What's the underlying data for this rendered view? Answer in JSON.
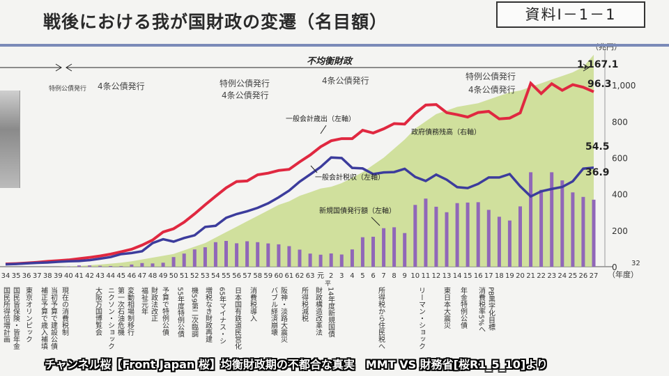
{
  "document_label": "資料Ⅰ－1－1",
  "caption": "チャンネル桜【Front Japan 桜】均衡財政期の不都合な真実　MMT VS 財務省[桜R1_5_10]より",
  "chart_data": {
    "type": "line",
    "title": "戦後における我が国財政の変遷（名目額）",
    "y_unit": "（兆円）",
    "x_unit": "（年度）",
    "y_right_ticks": [
      "0",
      "200",
      "400",
      "600",
      "800",
      "1,000"
    ],
    "y_right_range": [
      0,
      1200
    ],
    "y_left_range": [
      0,
      120
    ],
    "x": [
      "34",
      "35",
      "36",
      "37",
      "38",
      "39",
      "40",
      "41",
      "42",
      "43",
      "44",
      "45",
      "46",
      "47",
      "48",
      "49",
      "50",
      "51",
      "52",
      "53",
      "54",
      "55",
      "56",
      "57",
      "58",
      "59",
      "60",
      "61",
      "62",
      "63",
      "元",
      "2",
      "3",
      "4",
      "5",
      "6",
      "7",
      "8",
      "9",
      "10",
      "11",
      "12",
      "13",
      "14",
      "15",
      "16",
      "17",
      "18",
      "19",
      "20",
      "21",
      "22",
      "23",
      "24",
      "25",
      "26",
      "27"
    ],
    "x_extra_tick": "32",
    "era_labels": {
      "fiscal_period": "不均衡財政",
      "gannen_sub": "平"
    },
    "bond_issuance_labels": [
      "特例公債発行",
      "4条公債発行",
      "特例公債発行",
      "4条公債発行",
      "4条公債発行",
      "特例公債発行",
      "4条公債発行"
    ],
    "series": [
      {
        "name": "一般会計歳出（左軸）",
        "axis": "left",
        "color": "#e02840",
        "values": [
          1.5,
          1.7,
          2.0,
          2.4,
          2.9,
          3.3,
          3.7,
          4.4,
          5.1,
          5.9,
          6.9,
          8.2,
          9.6,
          11.9,
          14.7,
          19.1,
          20.9,
          24.5,
          29.1,
          34.1,
          38.8,
          43.4,
          46.9,
          47.2,
          50.6,
          51.5,
          53.0,
          53.6,
          57.7,
          61.5,
          66.0,
          69.3,
          70.5,
          70.5,
          75.1,
          73.6,
          75.9,
          78.8,
          78.5,
          84.4,
          89.0,
          89.3,
          84.8,
          83.7,
          82.4,
          84.9,
          85.5,
          81.4,
          81.8,
          84.7,
          101.0,
          95.3,
          100.7,
          97.1,
          100.2,
          98.8,
          96.3
        ]
      },
      {
        "name": "一般会計税収（左軸）",
        "axis": "left",
        "color": "#3c3c9c",
        "values": [
          1.3,
          1.5,
          1.8,
          2.1,
          2.3,
          2.7,
          3.0,
          3.1,
          3.6,
          4.4,
          5.3,
          6.9,
          7.5,
          8.5,
          13.0,
          15.1,
          13.8,
          15.8,
          17.3,
          21.9,
          22.5,
          26.9,
          29.0,
          30.5,
          32.4,
          34.9,
          38.2,
          41.9,
          46.8,
          50.8,
          54.9,
          60.1,
          59.8,
          54.4,
          54.1,
          51.0,
          51.9,
          52.1,
          53.9,
          49.4,
          47.2,
          50.7,
          47.9,
          43.8,
          43.3,
          45.6,
          49.1,
          49.1,
          51.0,
          44.3,
          38.7,
          41.5,
          42.8,
          43.9,
          47.0,
          54.0,
          54.5
        ]
      },
      {
        "name": "新規国債発行額（左軸）",
        "axis": "left",
        "color": "#9067b8",
        "type": "bar",
        "values": [
          0,
          0,
          0,
          0,
          0,
          0,
          0.2,
          0.7,
          0.7,
          0.5,
          0.4,
          0.3,
          1.2,
          2.0,
          1.8,
          2.2,
          5.3,
          7.2,
          9.5,
          10.7,
          13.5,
          14.2,
          12.9,
          14.0,
          13.5,
          12.8,
          12.3,
          11.3,
          9.4,
          7.2,
          6.6,
          7.3,
          6.7,
          9.5,
          16.2,
          16.5,
          21.2,
          21.7,
          18.5,
          34.0,
          37.5,
          33.0,
          30.0,
          35.0,
          35.3,
          35.5,
          31.3,
          27.5,
          25.4,
          33.2,
          52.0,
          42.3,
          52.0,
          47.5,
          40.9,
          38.4,
          36.9
        ]
      },
      {
        "name": "政府債務残高（右軸）",
        "axis": "right",
        "color": "#c9dc8e",
        "type": "area",
        "values": [
          0,
          0,
          0,
          0,
          0,
          0,
          2,
          4,
          8,
          12,
          17,
          22,
          30,
          40,
          50,
          60,
          70,
          90,
          110,
          130,
          160,
          190,
          220,
          250,
          280,
          310,
          340,
          360,
          390,
          410,
          430,
          440,
          460,
          490,
          520,
          560,
          600,
          650,
          700,
          760,
          800,
          840,
          860,
          880,
          890,
          900,
          920,
          940,
          960,
          970,
          990,
          1010,
          1030,
          1050,
          1070,
          1100,
          1167.1
        ]
      }
    ],
    "annotations": {
      "expenditure_last": "96.3",
      "debt_last": "1,167.1",
      "tax_last": "54.5",
      "bond_last": "36.9",
      "expenditure_label": "一般会計歳出（左軸）",
      "tax_label": "一般会計税収（左軸）",
      "bond_label": "新規国債発行額（左軸）",
      "debt_label": "政府債務残高（右軸）"
    },
    "event_notes": [
      "国民所得倍増計画",
      "国民皆保険・皆年金",
      "東京オリンピック",
      "補正予算で歳入補填",
      "当初予算で建設公債",
      "現在の消費税制",
      "大阪万国博覧会",
      "ニクソン・ショック",
      "第一次石油危機",
      "変動相場制移行",
      "福祉元年",
      "財政法改正",
      "予算で特例公債",
      "55年度特例公債",
      "機59第二次臨調",
      "増税なき財政再建",
      "65年マイナス・シーリング",
      "日本国有鉄道民営化",
      "消費税導入",
      "バブル経済崩壊",
      "阪神・淡路大震災",
      "所得税減税",
      "財政構造改革法",
      "14年度新規国債",
      "所得税から住民税への税源移譲",
      "リーマン・ショック",
      "東日本大震災",
      "年金特例公債",
      "消費税率5%へ",
      "PB黒字化目標"
    ],
    "grid": false,
    "legend": "inline"
  }
}
